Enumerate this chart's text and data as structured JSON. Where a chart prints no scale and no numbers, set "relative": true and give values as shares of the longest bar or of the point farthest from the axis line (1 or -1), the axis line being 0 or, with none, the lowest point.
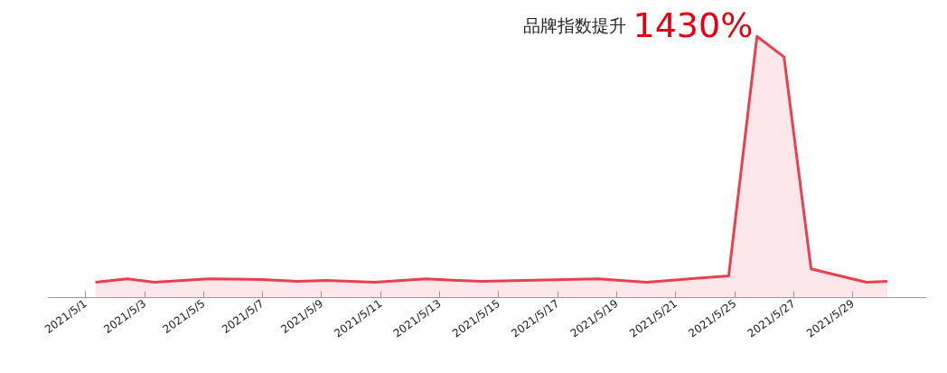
{
  "chart_data": {
    "type": "area",
    "relative": true,
    "color": "#e8404f",
    "grid": false,
    "marker": "none",
    "x": [
      "2021-05-01T08:00",
      "2021-05-02T10:00",
      "2021-05-03T08:00",
      "2021-05-05T04:00",
      "2021-05-06T23:00",
      "2021-05-08T04:00",
      "2021-05-09T04:00",
      "2021-05-10T19:00",
      "2021-05-12T13:00",
      "2021-05-13T14:00",
      "2021-05-14T10:00",
      "2021-05-18T09:00",
      "2021-05-20T00:00",
      "2021-05-22T19:00",
      "2021-05-23T18:00",
      "2021-05-24T16:00",
      "2021-05-25T14:00",
      "2021-05-27T11:00",
      "2021-05-28T04:00"
    ],
    "values": [
      0.059,
      0.072,
      0.059,
      0.072,
      0.069,
      0.062,
      0.066,
      0.059,
      0.072,
      0.066,
      0.062,
      0.072,
      0.059,
      0.083,
      1,
      0.921,
      0.11,
      0.059,
      0.062
    ],
    "xlim": [
      "2021-04-29T17:00",
      "2021-05-29T12:00"
    ],
    "xticks": [
      {
        "value": "2021-05-01",
        "label": "2021/5/1"
      },
      {
        "value": "2021-05-03",
        "label": "2021/5/3"
      },
      {
        "value": "2021-05-05",
        "label": "2021/5/5"
      },
      {
        "value": "2021-05-07",
        "label": "2021/5/7"
      },
      {
        "value": "2021-05-09",
        "label": "2021/5/9"
      },
      {
        "value": "2021-05-11",
        "label": "2021/5/11"
      },
      {
        "value": "2021-05-13",
        "label": "2021/5/13"
      },
      {
        "value": "2021-05-15",
        "label": "2021/5/15"
      },
      {
        "value": "2021-05-17",
        "label": "2021/5/17"
      },
      {
        "value": "2021-05-19",
        "label": "2021/5/19"
      },
      {
        "value": "2021-05-21",
        "label": "2021/5/21"
      },
      {
        "value": "2021-05-23",
        "label": "2021/5/25"
      },
      {
        "value": "2021-05-25",
        "label": "2021/5/27"
      },
      {
        "value": "2021-05-27",
        "label": "2021/5/29"
      }
    ],
    "annotations": [
      "品牌指数提升",
      "1430%"
    ],
    "tick_labels": "x"
  }
}
